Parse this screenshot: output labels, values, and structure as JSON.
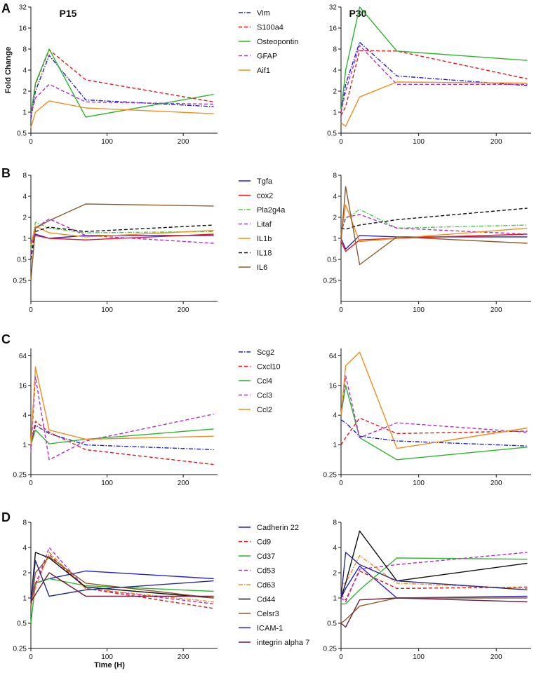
{
  "figure": {
    "column_titles": [
      "P15",
      "P30"
    ],
    "y_axis_label": "Fold Change",
    "x_axis_label": "Time (H)"
  },
  "colors": {
    "blue": "#1f1fd6",
    "red": "#e81818",
    "green": "#2db52d",
    "purple": "#b42cd8",
    "orange": "#f28c20",
    "black": "#111111",
    "brown": "#8b5a2b",
    "navy": "#2a2a8c",
    "maroon": "#6b1f3a",
    "lime": "#4cc94c"
  },
  "chart_data": [
    {
      "panel": "A",
      "column": "P15",
      "type": "line",
      "title": "P15",
      "xlabel": "",
      "ylabel": "Fold Change",
      "yscale": "log2",
      "xlim": [
        0,
        245
      ],
      "ylim": [
        0.5,
        32
      ],
      "xticks": [
        0,
        100,
        200
      ],
      "yticks": [
        0.5,
        1,
        2,
        4,
        8,
        16,
        32
      ],
      "ytick_labels": [
        "0.5",
        "1",
        "2",
        "4",
        "8",
        "16",
        "32"
      ],
      "x": [
        0,
        6,
        24,
        72,
        240
      ],
      "series": [
        {
          "name": "Vim",
          "color": "blue",
          "dash": "dashdot",
          "values": [
            0.8,
            2.0,
            6.5,
            1.5,
            1.2
          ]
        },
        {
          "name": "S100a4",
          "color": "red",
          "dash": "dash",
          "values": [
            0.9,
            2.5,
            7.8,
            2.9,
            1.4
          ]
        },
        {
          "name": "Osteopontin",
          "color": "green",
          "dash": "solid",
          "values": [
            0.9,
            2.6,
            8.0,
            0.85,
            1.8
          ]
        },
        {
          "name": "GFAP",
          "color": "purple",
          "dash": "dash",
          "values": [
            0.9,
            1.6,
            2.5,
            1.4,
            1.3
          ]
        },
        {
          "name": "Aif1",
          "color": "orange",
          "dash": "solid",
          "values": [
            0.6,
            1.0,
            1.45,
            1.15,
            0.95
          ]
        }
      ]
    },
    {
      "panel": "A",
      "column": "P30",
      "type": "line",
      "title": "P30",
      "xlabel": "",
      "ylabel": "",
      "yscale": "log2",
      "xlim": [
        0,
        245
      ],
      "ylim": [
        0.5,
        32
      ],
      "xticks": [
        0,
        100,
        200
      ],
      "yticks": [
        0.5,
        1,
        2,
        4,
        8,
        16,
        32
      ],
      "ytick_labels": [
        "0.5",
        "1",
        "2",
        "4",
        "8",
        "16",
        "32"
      ],
      "x": [
        0,
        6,
        24,
        72,
        240
      ],
      "series": [
        {
          "name": "Vim",
          "color": "blue",
          "dash": "dashdot",
          "values": [
            1.0,
            2.5,
            10.0,
            3.3,
            2.4
          ]
        },
        {
          "name": "S100a4",
          "color": "red",
          "dash": "dash",
          "values": [
            0.9,
            1.2,
            7.6,
            7.5,
            3.0
          ]
        },
        {
          "name": "Osteopontin",
          "color": "green",
          "dash": "solid",
          "values": [
            1.0,
            4.0,
            32.0,
            7.5,
            5.5
          ]
        },
        {
          "name": "GFAP",
          "color": "purple",
          "dash": "dash",
          "values": [
            1.0,
            2.0,
            9.0,
            2.5,
            2.5
          ]
        },
        {
          "name": "Aif1",
          "color": "orange",
          "dash": "solid",
          "values": [
            0.7,
            0.63,
            1.65,
            2.7,
            2.6
          ]
        }
      ]
    },
    {
      "panel": "B",
      "column": "P15",
      "type": "line",
      "title": "",
      "xlabel": "",
      "ylabel": "",
      "yscale": "log2",
      "xlim": [
        0,
        245
      ],
      "ylim": [
        0.125,
        8
      ],
      "xticks": [
        0,
        100,
        200
      ],
      "yticks": [
        0.25,
        0.5,
        1,
        2,
        4,
        8
      ],
      "ytick_labels": [
        "0.25",
        "0.5",
        "1",
        "2",
        "4",
        "8"
      ],
      "x": [
        0,
        6,
        24,
        72,
        240
      ],
      "series": [
        {
          "name": "Tgfa",
          "color": "blue",
          "dash": "solid",
          "values": [
            0.9,
            1.15,
            1.0,
            1.1,
            1.1
          ]
        },
        {
          "name": "cox2",
          "color": "red",
          "dash": "solid",
          "values": [
            0.8,
            1.1,
            1.0,
            0.95,
            1.15
          ]
        },
        {
          "name": "Pla2g4a",
          "color": "lime",
          "dash": "dashdot",
          "values": [
            0.7,
            1.7,
            1.4,
            1.2,
            1.25
          ]
        },
        {
          "name": "Litaf",
          "color": "purple",
          "dash": "dash",
          "values": [
            0.6,
            1.4,
            1.9,
            1.1,
            0.85
          ]
        },
        {
          "name": "IL1b",
          "color": "orange",
          "dash": "solid",
          "values": [
            0.8,
            1.5,
            1.2,
            1.05,
            1.3
          ]
        },
        {
          "name": "IL18",
          "color": "black",
          "dash": "dash",
          "values": [
            0.5,
            1.25,
            1.45,
            1.25,
            1.55
          ]
        },
        {
          "name": "IL6",
          "color": "brown",
          "dash": "solid",
          "values": [
            0.25,
            1.4,
            1.8,
            3.1,
            2.9
          ]
        }
      ]
    },
    {
      "panel": "B",
      "column": "P30",
      "type": "line",
      "title": "",
      "xlabel": "",
      "ylabel": "",
      "yscale": "log2",
      "xlim": [
        0,
        245
      ],
      "ylim": [
        0.125,
        8
      ],
      "xticks": [
        0,
        100,
        200
      ],
      "yticks": [
        0.25,
        0.5,
        1,
        2,
        4,
        8
      ],
      "ytick_labels": [
        "0.25",
        "0.5",
        "1",
        "2",
        "4",
        "8"
      ],
      "x": [
        0,
        6,
        24,
        72,
        240
      ],
      "series": [
        {
          "name": "Tgfa",
          "color": "blue",
          "dash": "solid",
          "values": [
            1.0,
            0.7,
            1.1,
            1.05,
            1.05
          ]
        },
        {
          "name": "cox2",
          "color": "red",
          "dash": "solid",
          "values": [
            0.9,
            0.65,
            0.95,
            1.0,
            1.15
          ]
        },
        {
          "name": "Pla2g4a",
          "color": "lime",
          "dash": "dashdot",
          "values": [
            1.3,
            1.9,
            2.6,
            1.4,
            1.55
          ]
        },
        {
          "name": "Litaf",
          "color": "purple",
          "dash": "dash",
          "values": [
            1.2,
            2.0,
            2.2,
            1.4,
            1.15
          ]
        },
        {
          "name": "IL1b",
          "color": "orange",
          "dash": "solid",
          "values": [
            1.1,
            3.0,
            0.9,
            1.0,
            1.4
          ]
        },
        {
          "name": "IL18",
          "color": "black",
          "dash": "dash",
          "values": [
            1.4,
            1.35,
            1.55,
            1.85,
            2.7
          ]
        },
        {
          "name": "IL6",
          "color": "brown",
          "dash": "solid",
          "values": [
            0.9,
            5.5,
            0.42,
            1.05,
            0.85
          ]
        }
      ]
    },
    {
      "panel": "C",
      "column": "P15",
      "type": "line",
      "title": "",
      "xlabel": "",
      "ylabel": "",
      "yscale": "log2",
      "xlim": [
        0,
        245
      ],
      "ylim": [
        0.25,
        90
      ],
      "xticks": [
        0,
        100,
        200
      ],
      "yticks": [
        0.25,
        1,
        4,
        16,
        64
      ],
      "ytick_labels": [
        "0.25",
        "1",
        "4",
        "16",
        "64"
      ],
      "x": [
        0,
        6,
        24,
        72,
        240
      ],
      "series": [
        {
          "name": "Scg2",
          "color": "blue",
          "dash": "dashdot",
          "values": [
            1.0,
            2.5,
            1.7,
            1.0,
            0.8
          ]
        },
        {
          "name": "Cxcl10",
          "color": "red",
          "dash": "dash",
          "values": [
            1.0,
            3.0,
            1.8,
            0.8,
            0.4
          ]
        },
        {
          "name": "Ccl4",
          "color": "green",
          "dash": "solid",
          "values": [
            1.0,
            2.0,
            1.05,
            1.3,
            2.1
          ]
        },
        {
          "name": "Ccl3",
          "color": "purple",
          "dash": "dash",
          "values": [
            0.7,
            24.0,
            0.5,
            1.2,
            4.2
          ]
        },
        {
          "name": "Ccl2",
          "color": "orange",
          "dash": "solid",
          "values": [
            1.0,
            38.0,
            2.0,
            1.3,
            1.5
          ]
        }
      ]
    },
    {
      "panel": "C",
      "column": "P30",
      "type": "line",
      "title": "",
      "xlabel": "",
      "ylabel": "",
      "yscale": "log2",
      "xlim": [
        0,
        245
      ],
      "ylim": [
        0.25,
        90
      ],
      "xticks": [
        0,
        100,
        200
      ],
      "yticks": [
        0.25,
        1,
        4,
        16,
        64
      ],
      "ytick_labels": [
        "0.25",
        "1",
        "4",
        "16",
        "64"
      ],
      "x": [
        0,
        6,
        24,
        72,
        240
      ],
      "series": [
        {
          "name": "Scg2",
          "color": "blue",
          "dash": "dashdot",
          "values": [
            3.2,
            2.8,
            1.5,
            1.2,
            0.95
          ]
        },
        {
          "name": "Cxcl10",
          "color": "red",
          "dash": "dash",
          "values": [
            1.0,
            1.4,
            3.5,
            1.7,
            1.9
          ]
        },
        {
          "name": "Ccl4",
          "color": "green",
          "dash": "solid",
          "values": [
            4.0,
            16.0,
            1.4,
            0.5,
            0.9
          ]
        },
        {
          "name": "Ccl3",
          "color": "purple",
          "dash": "dash",
          "values": [
            4.0,
            25.0,
            1.4,
            2.8,
            1.8
          ]
        },
        {
          "name": "Ccl2",
          "color": "orange",
          "dash": "solid",
          "values": [
            4.0,
            40.0,
            76.0,
            0.85,
            2.2
          ]
        }
      ]
    },
    {
      "panel": "D",
      "column": "P15",
      "type": "line",
      "title": "",
      "xlabel": "Time (H)",
      "ylabel": "",
      "yscale": "log2",
      "xlim": [
        0,
        245
      ],
      "ylim": [
        0.25,
        8
      ],
      "xticks": [
        0,
        100,
        200
      ],
      "yticks": [
        0.25,
        0.5,
        1,
        2,
        4,
        8
      ],
      "ytick_labels": [
        "0.25",
        "0.5",
        "1",
        "2",
        "4",
        "8"
      ],
      "x": [
        0,
        6,
        24,
        72,
        240
      ],
      "series": [
        {
          "name": "Cadherin 22",
          "color": "blue",
          "dash": "solid",
          "values": [
            0.9,
            1.5,
            1.7,
            2.1,
            1.7
          ]
        },
        {
          "name": "Cd9",
          "color": "red",
          "dash": "dash",
          "values": [
            0.8,
            1.5,
            3.3,
            1.3,
            0.75
          ]
        },
        {
          "name": "Cd37",
          "color": "green",
          "dash": "solid",
          "values": [
            0.5,
            1.5,
            1.7,
            1.4,
            1.2
          ]
        },
        {
          "name": "Cd53",
          "color": "purple",
          "dash": "dash",
          "values": [
            0.8,
            1.4,
            4.0,
            1.3,
            0.85
          ]
        },
        {
          "name": "Cd63",
          "color": "orange",
          "dash": "dashdot",
          "values": [
            0.8,
            1.3,
            3.5,
            1.3,
            0.9
          ]
        },
        {
          "name": "Cd44",
          "color": "black",
          "dash": "solid",
          "values": [
            0.9,
            3.5,
            3.0,
            1.35,
            1.0
          ]
        },
        {
          "name": "Celsr3",
          "color": "brown",
          "dash": "solid",
          "values": [
            0.8,
            2.0,
            3.1,
            1.5,
            1.0
          ]
        },
        {
          "name": "ICAM-1",
          "color": "navy",
          "dash": "solid",
          "values": [
            0.9,
            2.8,
            1.05,
            1.25,
            1.6
          ]
        },
        {
          "name": "integrin alpha 7",
          "color": "maroon",
          "dash": "solid",
          "values": [
            0.9,
            1.1,
            2.0,
            1.05,
            1.05
          ]
        }
      ]
    },
    {
      "panel": "D",
      "column": "P30",
      "type": "line",
      "title": "",
      "xlabel": "",
      "ylabel": "",
      "yscale": "log2",
      "xlim": [
        0,
        245
      ],
      "ylim": [
        0.25,
        8
      ],
      "xticks": [
        0,
        100,
        200
      ],
      "yticks": [
        0.25,
        0.5,
        1,
        2,
        4,
        8
      ],
      "ytick_labels": [
        "0.25",
        "0.5",
        "1",
        "2",
        "4",
        "8"
      ],
      "x": [
        0,
        6,
        24,
        72,
        240
      ],
      "series": [
        {
          "name": "Cadherin 22",
          "color": "blue",
          "dash": "solid",
          "values": [
            1.0,
            1.3,
            2.4,
            1.0,
            1.05
          ]
        },
        {
          "name": "Cd9",
          "color": "red",
          "dash": "dash",
          "values": [
            1.1,
            0.95,
            2.1,
            1.3,
            1.35
          ]
        },
        {
          "name": "Cd37",
          "color": "green",
          "dash": "solid",
          "values": [
            0.85,
            0.85,
            1.25,
            3.0,
            2.9
          ]
        },
        {
          "name": "Cd53",
          "color": "purple",
          "dash": "dash",
          "values": [
            1.0,
            0.9,
            2.2,
            2.5,
            3.5
          ]
        },
        {
          "name": "Cd63",
          "color": "orange",
          "dash": "dashdot",
          "values": [
            1.5,
            1.5,
            3.2,
            1.5,
            1.3
          ]
        },
        {
          "name": "Cd44",
          "color": "black",
          "dash": "solid",
          "values": [
            1.0,
            1.5,
            6.3,
            1.6,
            2.6
          ]
        },
        {
          "name": "Celsr3",
          "color": "brown",
          "dash": "solid",
          "values": [
            0.5,
            0.55,
            0.8,
            1.0,
            1.0
          ]
        },
        {
          "name": "ICAM-1",
          "color": "navy",
          "dash": "solid",
          "values": [
            1.0,
            3.5,
            2.5,
            1.6,
            1.25
          ]
        },
        {
          "name": "integrin alpha 7",
          "color": "maroon",
          "dash": "solid",
          "values": [
            0.5,
            0.45,
            0.95,
            1.0,
            0.9
          ]
        }
      ]
    }
  ]
}
